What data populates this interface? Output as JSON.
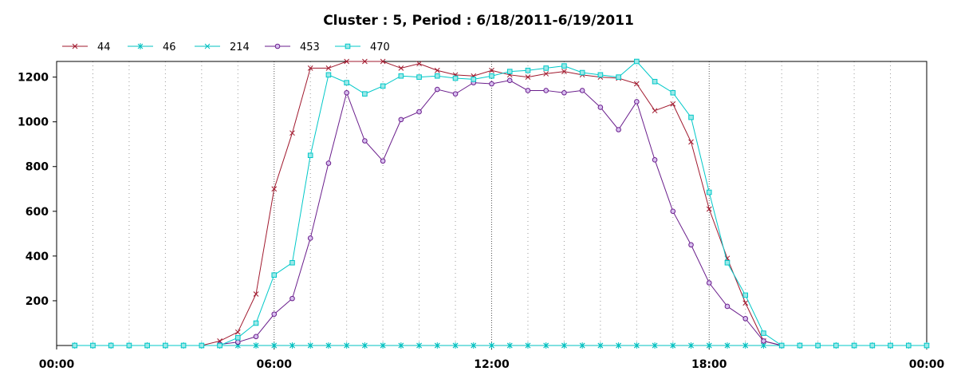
{
  "chart_data": {
    "type": "line",
    "title": "Cluster : 5, Period : 6/18/2011-6/19/2011",
    "xlabel": "",
    "ylabel": "",
    "x_unit": "hours",
    "x_ticks": [
      "00:00",
      "06:00",
      "12:00",
      "18:00",
      "00:00"
    ],
    "xlim": [
      0,
      24
    ],
    "ylim": [
      0,
      1270
    ],
    "y_ticks": [
      200,
      400,
      600,
      800,
      1000,
      1200
    ],
    "grid": "vertical dotted",
    "legend": "top-left",
    "series": [
      {
        "name": "44",
        "color": "#a0182d",
        "marker": "x",
        "x": [
          0.5,
          1,
          1.5,
          2,
          2.5,
          3,
          3.5,
          4,
          4.5,
          5,
          5.5,
          6,
          6.5,
          7,
          7.5,
          8,
          8.5,
          9,
          9.5,
          10,
          10.5,
          11,
          11.5,
          12,
          12.5,
          13,
          13.5,
          14,
          14.5,
          15,
          15.5,
          16,
          16.5,
          17,
          17.5,
          18,
          18.5,
          19,
          19.5,
          20,
          20.5,
          21,
          21.5,
          22,
          22.5,
          23,
          23.5,
          24
        ],
        "y": [
          0,
          0,
          0,
          0,
          0,
          0,
          0,
          0,
          20,
          60,
          230,
          700,
          950,
          1240,
          1240,
          1270,
          1270,
          1270,
          1240,
          1260,
          1230,
          1210,
          1205,
          1230,
          1210,
          1200,
          1215,
          1225,
          1210,
          1200,
          1195,
          1170,
          1050,
          1080,
          910,
          610,
          390,
          190,
          20,
          0,
          0,
          0,
          0,
          0,
          0,
          0,
          0,
          0
        ]
      },
      {
        "name": "46",
        "color": "#00c0c0",
        "marker": "asterisk",
        "x": [
          0.5,
          1,
          1.5,
          2,
          2.5,
          3,
          3.5,
          4,
          4.5,
          5,
          5.5,
          6,
          6.5,
          7,
          7.5,
          8,
          8.5,
          9,
          9.5,
          10,
          10.5,
          11,
          11.5,
          12,
          12.5,
          13,
          13.5,
          14,
          14.5,
          15,
          15.5,
          16,
          16.5,
          17,
          17.5,
          18,
          18.5,
          19,
          19.5,
          20,
          20.5,
          21,
          21.5,
          22,
          22.5,
          23,
          23.5,
          24
        ],
        "y": [
          0,
          0,
          0,
          0,
          0,
          0,
          0,
          0,
          0,
          0,
          0,
          0,
          0,
          0,
          0,
          0,
          0,
          0,
          0,
          0,
          0,
          0,
          0,
          0,
          0,
          0,
          0,
          0,
          0,
          0,
          0,
          0,
          0,
          0,
          0,
          0,
          0,
          0,
          0,
          0,
          0,
          0,
          0,
          0,
          0,
          0,
          0,
          0
        ]
      },
      {
        "name": "214",
        "color": "#00c0c0",
        "marker": "x",
        "x": [
          0.5,
          1,
          1.5,
          2,
          2.5,
          3,
          3.5,
          4,
          4.5,
          5,
          5.5,
          6,
          6.5,
          7,
          7.5,
          8,
          8.5,
          9,
          9.5,
          10,
          10.5,
          11,
          11.5,
          12,
          12.5,
          13,
          13.5,
          14,
          14.5,
          15,
          15.5,
          16,
          16.5,
          17,
          17.5,
          18,
          18.5,
          19,
          19.5,
          20,
          20.5,
          21,
          21.5,
          22,
          22.5,
          23,
          23.5,
          24
        ],
        "y": [
          0,
          0,
          0,
          0,
          0,
          0,
          0,
          0,
          0,
          0,
          0,
          0,
          0,
          0,
          0,
          0,
          0,
          0,
          0,
          0,
          0,
          0,
          0,
          0,
          0,
          0,
          0,
          0,
          0,
          0,
          0,
          0,
          0,
          0,
          0,
          0,
          0,
          0,
          0,
          0,
          0,
          0,
          0,
          0,
          0,
          0,
          0,
          0
        ]
      },
      {
        "name": "453",
        "color": "#6a1e8c",
        "marker": "circle",
        "x": [
          4.5,
          5,
          5.5,
          6,
          6.5,
          7,
          7.5,
          8,
          8.5,
          9,
          9.5,
          10,
          10.5,
          11,
          11.5,
          12,
          12.5,
          13,
          13.5,
          14,
          14.5,
          15,
          15.5,
          16,
          16.5,
          17,
          17.5,
          18,
          18.5,
          19,
          19.5,
          20
        ],
        "y": [
          5,
          15,
          40,
          140,
          210,
          480,
          815,
          1130,
          915,
          825,
          1010,
          1045,
          1145,
          1125,
          1175,
          1170,
          1185,
          1140,
          1140,
          1130,
          1140,
          1065,
          965,
          1090,
          830,
          600,
          450,
          280,
          175,
          120,
          20,
          0
        ]
      },
      {
        "name": "470",
        "color": "#00c8c8",
        "marker": "square",
        "x": [
          0.5,
          1,
          1.5,
          2,
          2.5,
          3,
          3.5,
          4,
          4.5,
          5,
          5.5,
          6,
          6.5,
          7,
          7.5,
          8,
          8.5,
          9,
          9.5,
          10,
          10.5,
          11,
          11.5,
          12,
          12.5,
          13,
          13.5,
          14,
          14.5,
          15,
          15.5,
          16,
          16.5,
          17,
          17.5,
          18,
          18.5,
          19,
          19.5,
          20,
          20.5,
          21,
          21.5,
          22,
          22.5,
          23,
          23.5,
          24
        ],
        "y": [
          0,
          0,
          0,
          0,
          0,
          0,
          0,
          0,
          0,
          35,
          100,
          315,
          370,
          850,
          1210,
          1175,
          1125,
          1160,
          1205,
          1200,
          1205,
          1195,
          1190,
          1205,
          1225,
          1230,
          1240,
          1250,
          1220,
          1210,
          1200,
          1270,
          1180,
          1130,
          1020,
          685,
          370,
          225,
          55,
          0,
          0,
          0,
          0,
          0,
          0,
          0,
          0,
          0
        ]
      }
    ]
  }
}
